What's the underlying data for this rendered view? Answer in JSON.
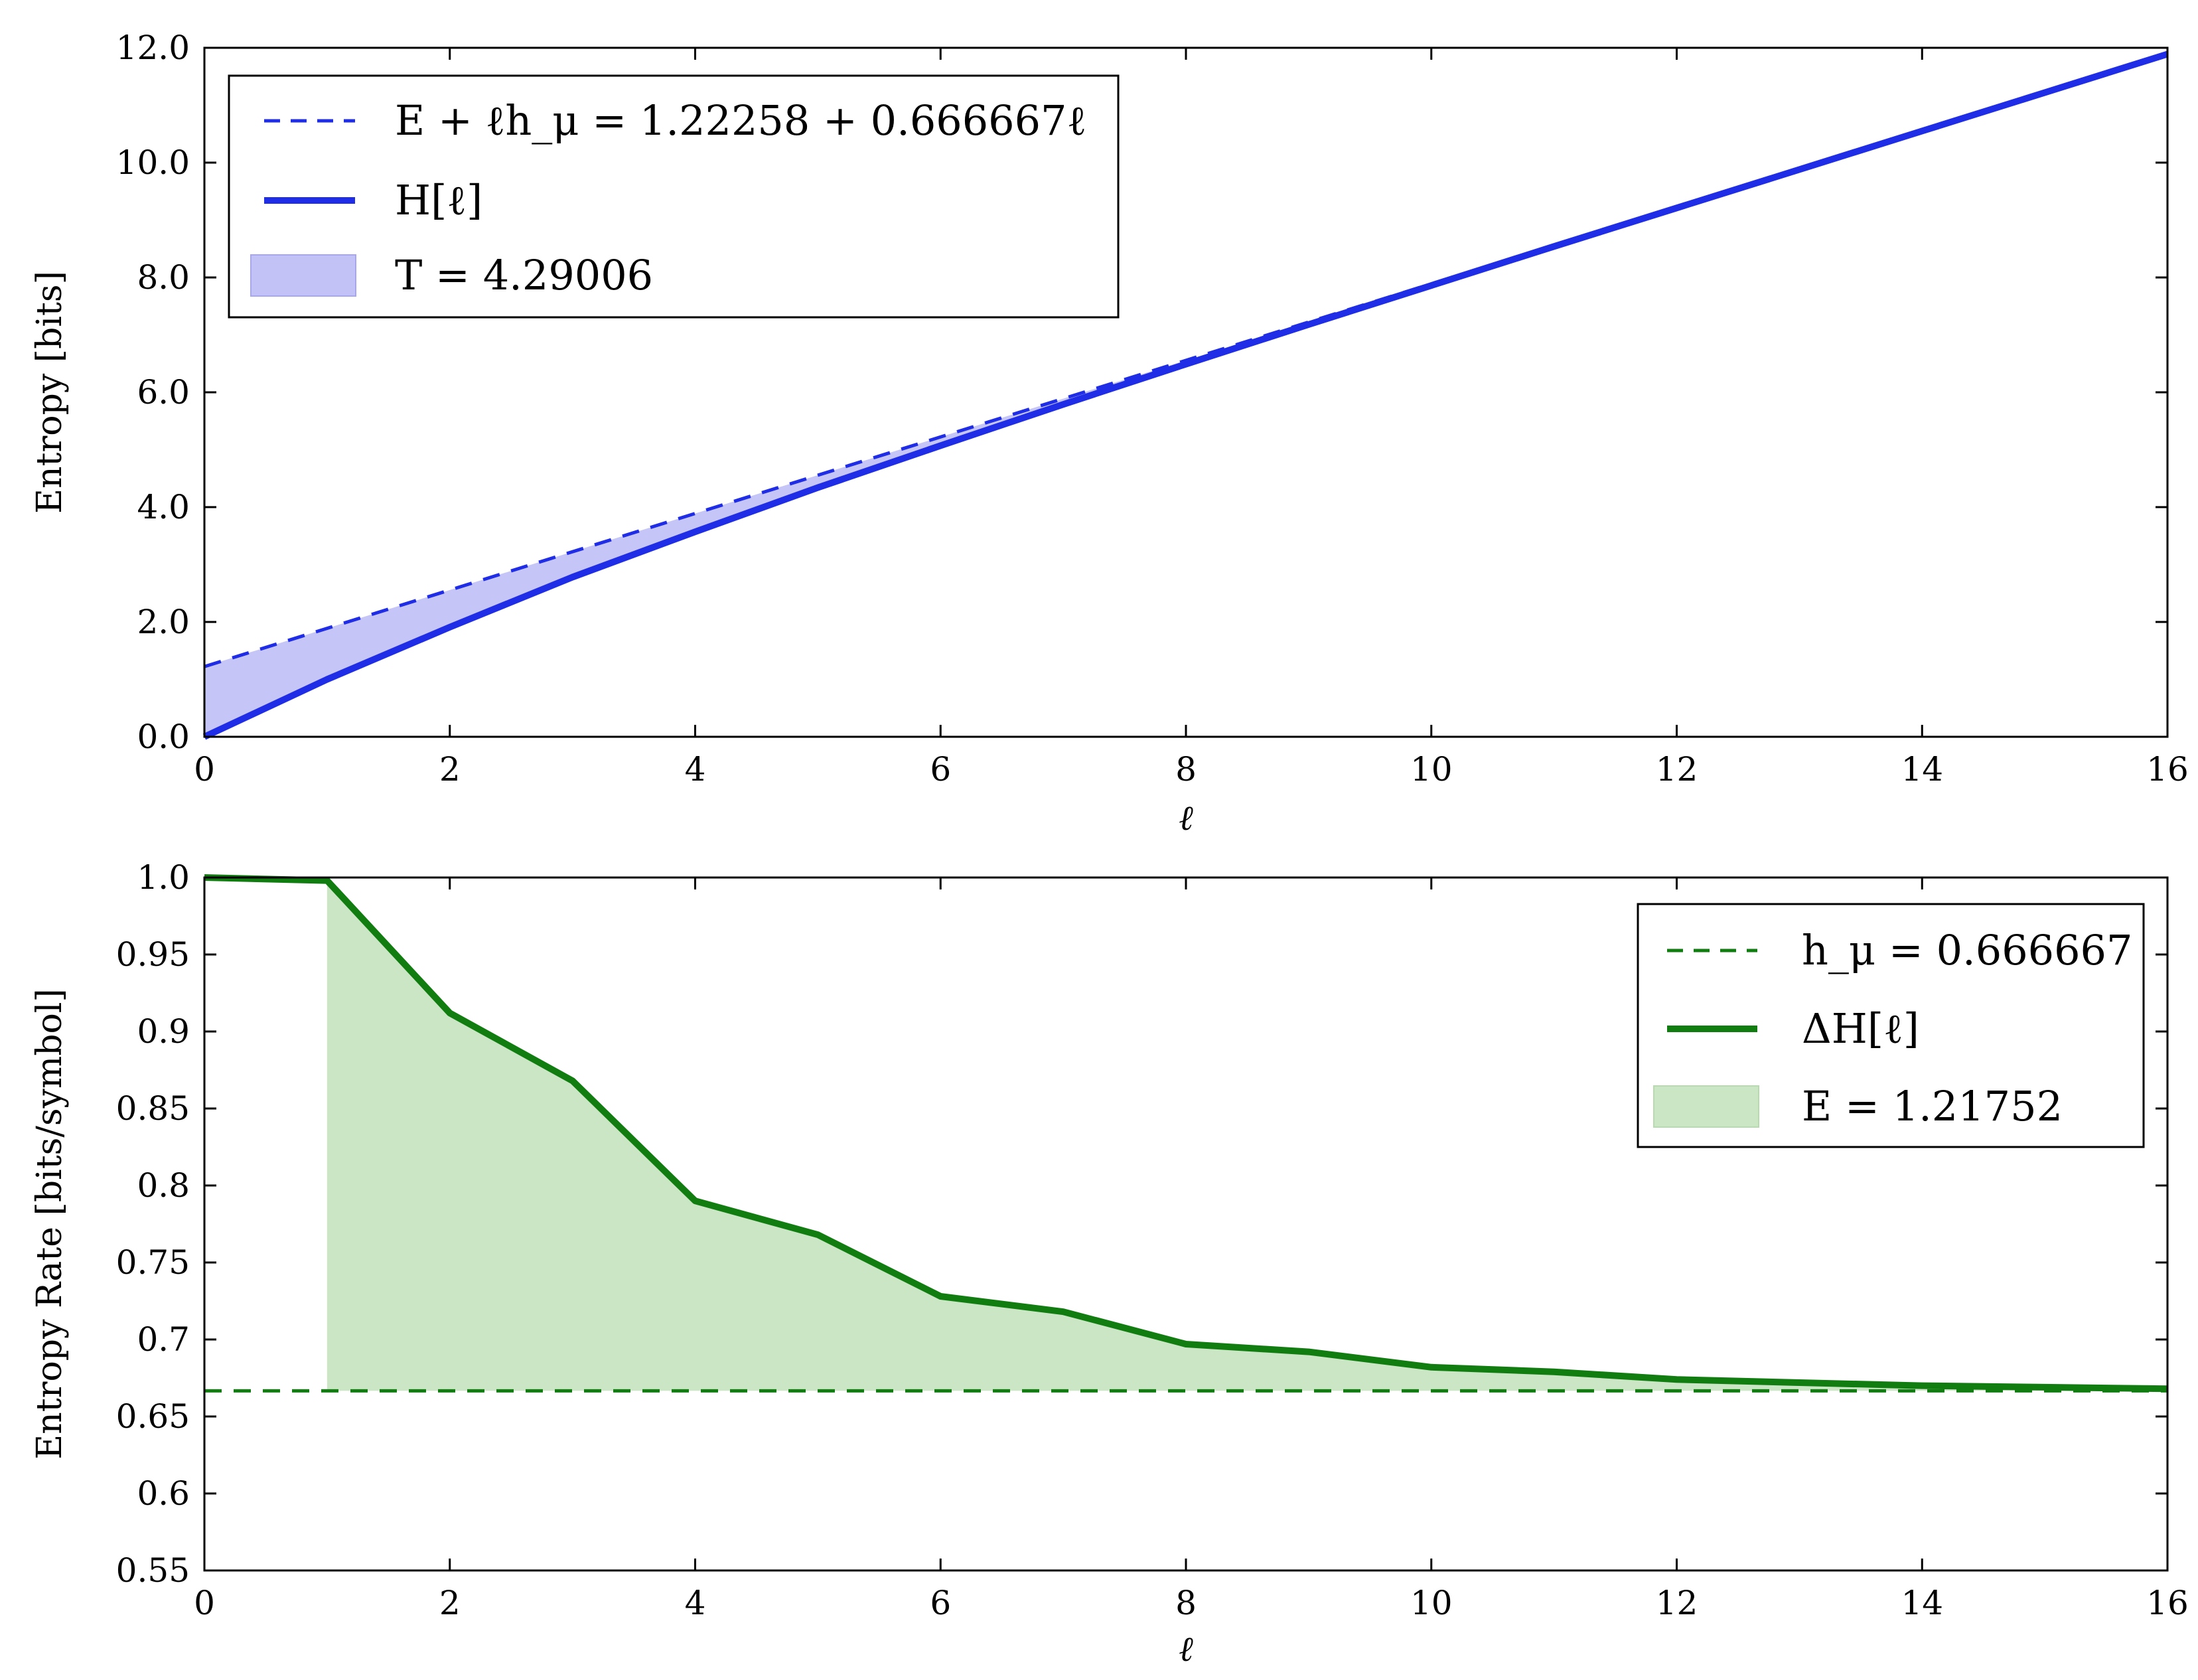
{
  "chart_data": [
    {
      "type": "line",
      "xlabel": "ℓ",
      "ylabel": "Entropy [bits]",
      "xlim": [
        0,
        16
      ],
      "ylim": [
        0,
        12
      ],
      "xticks": [
        "0",
        "2",
        "4",
        "6",
        "8",
        "10",
        "12",
        "14",
        "16"
      ],
      "yticks": [
        "0.0",
        "2.0",
        "4.0",
        "6.0",
        "8.0",
        "10.0",
        "12.0"
      ],
      "grid": false,
      "legend_position": "top-left",
      "colors": {
        "line": "#1f2de6",
        "fill": "#a6a6f2"
      },
      "series": [
        {
          "name": "E + ℓh_μ = 1.22258 + 0.666667ℓ",
          "style": "dashed",
          "intercept": 1.22258,
          "slope": 0.666667,
          "x": [
            0,
            16
          ]
        },
        {
          "name": "H[ℓ]",
          "style": "solid",
          "x": [
            0,
            1,
            2,
            3,
            4,
            5,
            6,
            7,
            8,
            9,
            10,
            11,
            12,
            13,
            14,
            15,
            16
          ],
          "y": [
            0.0,
            1.0,
            1.91,
            2.78,
            3.57,
            4.34,
            5.07,
            5.79,
            6.49,
            7.18,
            7.86,
            8.54,
            9.21,
            9.88,
            10.55,
            11.22,
            11.89
          ]
        }
      ],
      "fill": {
        "name": "T = 4.29006",
        "between": [
          "E + ℓh_μ",
          "H[ℓ]"
        ]
      }
    },
    {
      "type": "line",
      "xlabel": "ℓ",
      "ylabel": "Entropy Rate [bits/symbol]",
      "xlim": [
        0,
        16
      ],
      "ylim": [
        0.55,
        1.0
      ],
      "xticks": [
        "0",
        "2",
        "4",
        "6",
        "8",
        "10",
        "12",
        "14",
        "16"
      ],
      "yticks": [
        "0.55",
        "0.6",
        "0.65",
        "0.7",
        "0.75",
        "0.8",
        "0.85",
        "0.9",
        "0.95",
        "1.0"
      ],
      "grid": false,
      "legend_position": "top-right",
      "colors": {
        "line": "#117d11",
        "fill": "#cbe6c5"
      },
      "series": [
        {
          "name": "h_μ = 0.666667",
          "style": "dashed",
          "value": 0.666667,
          "x": [
            0,
            16
          ]
        },
        {
          "name": "ΔH[ℓ]",
          "style": "solid",
          "x": [
            0,
            1,
            2,
            3,
            4,
            5,
            6,
            7,
            8,
            9,
            10,
            11,
            12,
            13,
            14,
            15,
            16
          ],
          "y": [
            1.0,
            0.998,
            0.912,
            0.868,
            0.79,
            0.768,
            0.728,
            0.718,
            0.697,
            0.692,
            0.682,
            0.679,
            0.674,
            0.672,
            0.67,
            0.669,
            0.668
          ]
        }
      ],
      "fill": {
        "name": "E = 1.21752",
        "between": [
          "h_μ",
          "ΔH[ℓ]"
        ],
        "x_from": 1
      }
    }
  ]
}
